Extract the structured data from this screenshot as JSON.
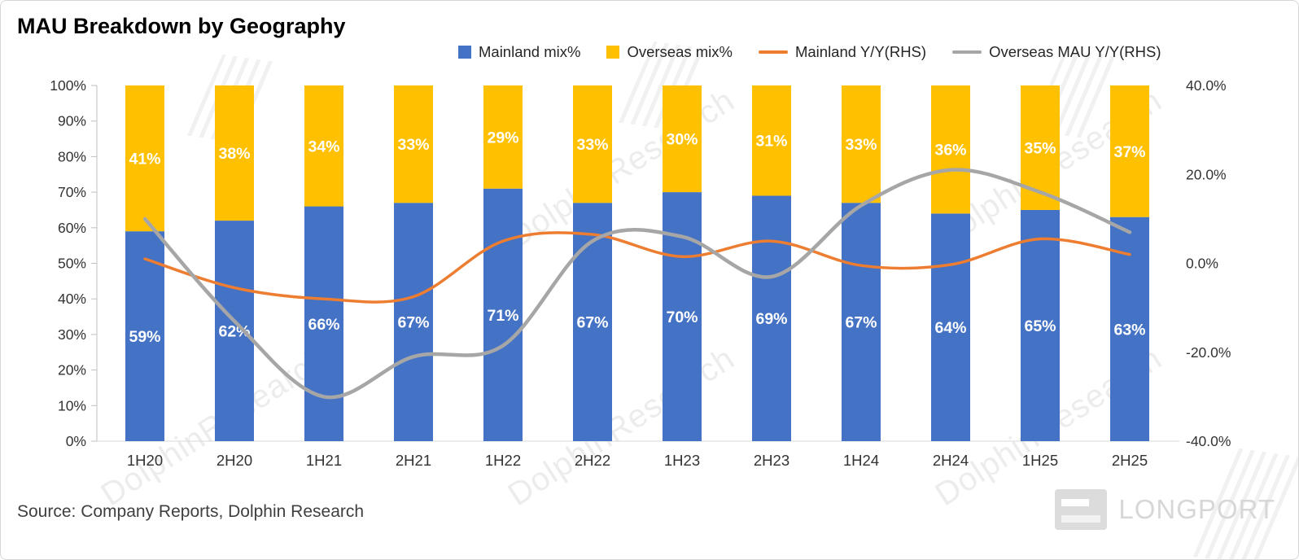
{
  "title": "MAU Breakdown by Geography",
  "source": "Source: Company Reports, Dolphin Research",
  "watermark": "DolphinResearch",
  "brand": "LONGPORT",
  "legend": [
    {
      "label": "Mainland mix%",
      "type": "square",
      "color": "#4472C4"
    },
    {
      "label": "Overseas mix%",
      "type": "square",
      "color": "#FFC000"
    },
    {
      "label": "Mainland Y/Y(RHS)",
      "type": "line",
      "color": "#ED7D31"
    },
    {
      "label": "Overseas MAU Y/Y(RHS)",
      "type": "line",
      "color": "#A6A6A6"
    }
  ],
  "chart_data": {
    "type": "bar",
    "subtype": "100-percent-stacked-bars-with-lines",
    "title": "MAU Breakdown by Geography",
    "categories": [
      "1H20",
      "2H20",
      "1H21",
      "2H21",
      "1H22",
      "2H22",
      "1H23",
      "2H23",
      "1H24",
      "2H24",
      "1H25",
      "2H25"
    ],
    "series": [
      {
        "name": "Mainland mix%",
        "type": "bar",
        "axis": "left",
        "color": "#4472C4",
        "values": [
          59,
          62,
          66,
          67,
          71,
          67,
          70,
          69,
          67,
          64,
          65,
          63
        ]
      },
      {
        "name": "Overseas mix%",
        "type": "bar",
        "axis": "left",
        "color": "#FFC000",
        "values": [
          41,
          38,
          34,
          33,
          29,
          33,
          30,
          31,
          33,
          36,
          35,
          37
        ]
      },
      {
        "name": "Mainland Y/Y(RHS)",
        "type": "line",
        "axis": "right",
        "color": "#ED7D31",
        "values": [
          1,
          -5.5,
          -8,
          -7.5,
          5,
          6.5,
          1.5,
          5,
          -0.5,
          -0.3,
          5.5,
          2
        ]
      },
      {
        "name": "Overseas MAU Y/Y(RHS)",
        "type": "line",
        "axis": "right",
        "color": "#A6A6A6",
        "values": [
          10,
          -13,
          -30,
          -21,
          -18.5,
          5,
          6,
          -3,
          13,
          21,
          16,
          7
        ]
      }
    ],
    "left_axis": {
      "min": 0,
      "max": 100,
      "tick_values": [
        0,
        10,
        20,
        30,
        40,
        50,
        60,
        70,
        80,
        90,
        100
      ],
      "tick_labels": [
        "0%",
        "10%",
        "20%",
        "30%",
        "40%",
        "50%",
        "60%",
        "70%",
        "80%",
        "90%",
        "100%"
      ]
    },
    "right_axis": {
      "min": -40,
      "max": 40,
      "tick_values": [
        -40,
        -20,
        0,
        20,
        40
      ],
      "tick_labels": [
        "-40.0%",
        "-20.0%",
        "0.0%",
        "20.0%",
        "40.0%"
      ]
    },
    "bar_labels": true,
    "grid": false,
    "legend_position": "top"
  }
}
